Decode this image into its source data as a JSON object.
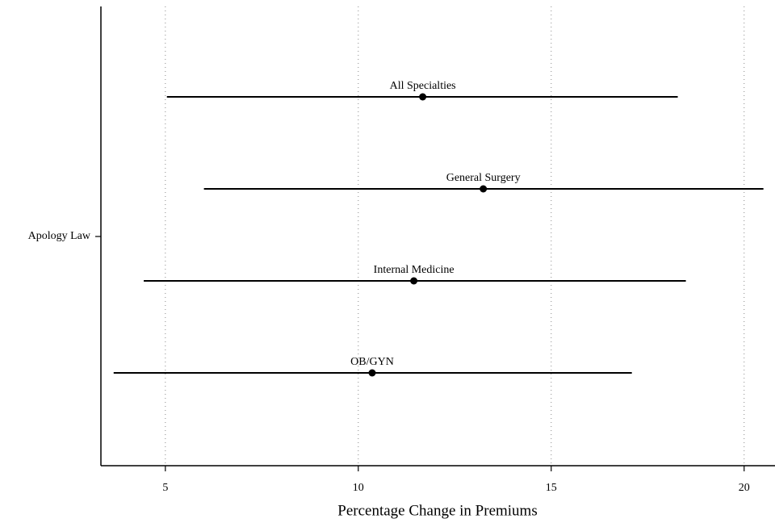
{
  "chart_data": {
    "type": "interval",
    "xlabel": "Percentage Change in Premiums",
    "ytick_label": "Apology Law",
    "categories": [
      "All Specialties",
      "General Surgery",
      "Internal Medicine",
      "OB/GYN"
    ],
    "values": [
      11.67,
      13.24,
      11.44,
      10.36
    ],
    "lower": [
      5.04,
      6.0,
      4.44,
      3.66
    ],
    "upper": [
      18.28,
      20.5,
      18.49,
      17.09
    ],
    "xlim": [
      3.33,
      20.8
    ],
    "xticks": [
      5,
      10,
      15,
      20
    ],
    "grid": true,
    "color": "#000000"
  }
}
